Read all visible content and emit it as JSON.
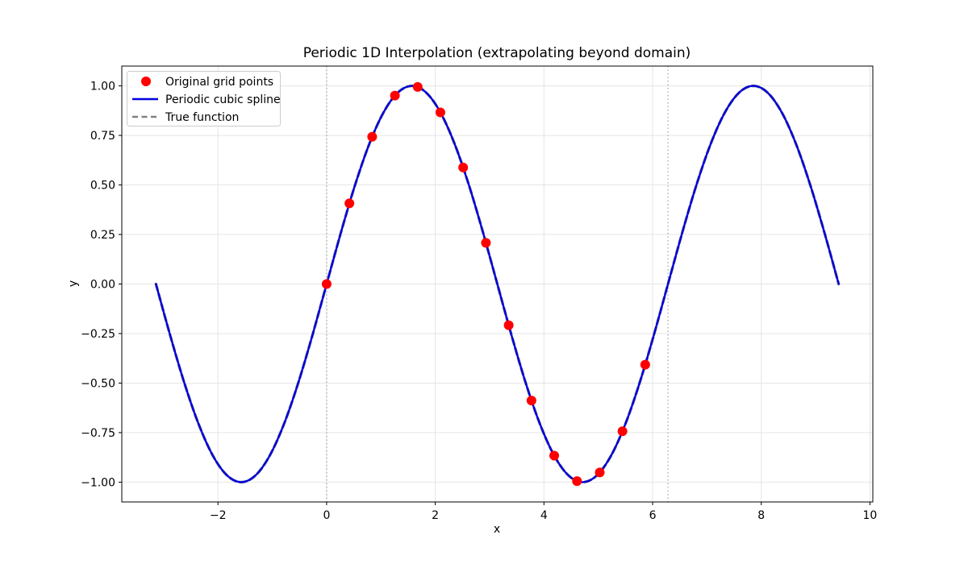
{
  "chart_data": {
    "type": "line",
    "title": "Periodic 1D Interpolation (extrapolating beyond domain)",
    "xlabel": "x",
    "ylabel": "y",
    "xlim": [
      -3.77,
      10.053
    ],
    "ylim": [
      -1.1,
      1.1
    ],
    "grid": true,
    "xticks": [
      {
        "v": -2,
        "label": "−2"
      },
      {
        "v": 0,
        "label": "0"
      },
      {
        "v": 2,
        "label": "2"
      },
      {
        "v": 4,
        "label": "4"
      },
      {
        "v": 6,
        "label": "6"
      },
      {
        "v": 8,
        "label": "8"
      },
      {
        "v": 10,
        "label": "10"
      }
    ],
    "yticks": [
      {
        "v": 1.0,
        "label": "1.00"
      },
      {
        "v": 0.75,
        "label": "0.75"
      },
      {
        "v": 0.5,
        "label": "0.50"
      },
      {
        "v": 0.25,
        "label": "0.25"
      },
      {
        "v": 0.0,
        "label": "0.00"
      },
      {
        "v": -0.25,
        "label": "−0.25"
      },
      {
        "v": -0.5,
        "label": "−0.50"
      },
      {
        "v": -0.75,
        "label": "−0.75"
      },
      {
        "v": -1.0,
        "label": "−1.00"
      }
    ],
    "domain_lines": {
      "x": [
        0,
        6.2832
      ],
      "style": "dotted",
      "color": "#a8a8a8"
    },
    "colors": {
      "grid": "#e5e5e5",
      "spine": "#000000",
      "points": "#ff0000",
      "spline": "#0000dd",
      "true_fn": "#808080"
    },
    "series": [
      {
        "name": "True function",
        "kind": "line",
        "dashed": true,
        "color": "#808080",
        "width": 3.4,
        "x_start": -3.1416,
        "x_step": 0.2618,
        "y": [
          0,
          -0.259,
          -0.5,
          -0.707,
          -0.866,
          -0.966,
          -1,
          -0.966,
          -0.866,
          -0.707,
          -0.5,
          -0.259,
          0,
          0.259,
          0.5,
          0.707,
          0.866,
          0.966,
          1,
          0.966,
          0.866,
          0.707,
          0.5,
          0.259,
          0,
          -0.259,
          -0.5,
          -0.707,
          -0.866,
          -0.966,
          -1,
          -0.966,
          -0.866,
          -0.707,
          -0.5,
          -0.259,
          0,
          0.259,
          0.5,
          0.707,
          0.866,
          0.966,
          1,
          0.966,
          0.866,
          0.707,
          0.5,
          0.259,
          0
        ]
      },
      {
        "name": "Periodic cubic spline",
        "kind": "line",
        "dashed": false,
        "color": "#0000dd",
        "width": 2.4,
        "x_start": -3.1416,
        "x_step": 0.2618,
        "y": [
          0,
          -0.259,
          -0.5,
          -0.707,
          -0.866,
          -0.966,
          -1,
          -0.966,
          -0.866,
          -0.707,
          -0.5,
          -0.259,
          0,
          0.259,
          0.5,
          0.707,
          0.866,
          0.966,
          1,
          0.966,
          0.866,
          0.707,
          0.5,
          0.259,
          0,
          -0.259,
          -0.5,
          -0.707,
          -0.866,
          -0.966,
          -1,
          -0.966,
          -0.866,
          -0.707,
          -0.5,
          -0.259,
          0,
          0.259,
          0.5,
          0.707,
          0.866,
          0.966,
          1,
          0.966,
          0.866,
          0.707,
          0.5,
          0.259,
          0
        ]
      },
      {
        "name": "Original grid points",
        "kind": "scatter",
        "color": "#ff0000",
        "radius": 6,
        "x": [
          0,
          0.419,
          0.838,
          1.257,
          1.676,
          2.094,
          2.513,
          2.932,
          3.351,
          3.77,
          4.189,
          4.608,
          5.027,
          5.445,
          5.864
        ],
        "y": [
          0,
          0.407,
          0.743,
          0.951,
          0.995,
          0.866,
          0.588,
          0.208,
          -0.208,
          -0.588,
          -0.866,
          -0.995,
          -0.951,
          -0.743,
          -0.407
        ]
      }
    ],
    "legend": {
      "position": "upper-left",
      "entries": [
        {
          "label": "Original grid points",
          "marker": "dot",
          "color": "#ff0000"
        },
        {
          "label": "Periodic cubic spline",
          "marker": "line",
          "color": "#0000dd"
        },
        {
          "label": "True function",
          "marker": "dashed-line",
          "color": "#808080"
        }
      ]
    }
  }
}
